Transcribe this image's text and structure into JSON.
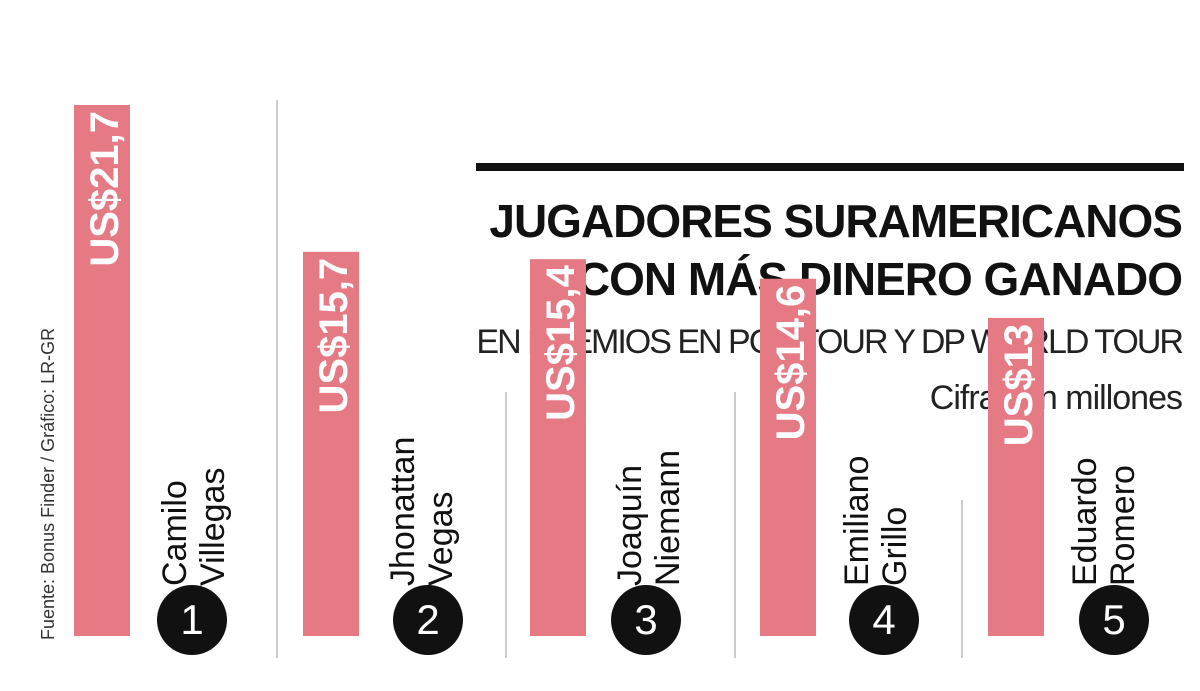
{
  "title_lines": [
    "JUGADORES SURAMERICANOS",
    "CON MÁS DINERO GANADO"
  ],
  "subtitle": "EN PREMIOS EN PGA TOUR Y DP WORLD TOUR",
  "units_note": "Cifras en millones",
  "source": "Fuente: Bonus Finder  / Gráfico: LR-GR",
  "colors": {
    "bar": "#e57a85",
    "text": "#111111",
    "divider": "#bbbbbb",
    "badge": "#111111"
  },
  "chart_data": {
    "type": "bar",
    "title": "JUGADORES SURAMERICANOS CON MÁS DINERO GANADO",
    "subtitle": "EN PREMIOS EN PGA TOUR Y DP WORLD TOUR",
    "ylabel": "Cifras en millones",
    "grid": false,
    "ylim": [
      0,
      21.7
    ],
    "players": [
      {
        "rank": "1",
        "first": "Camilo",
        "last": "Villegas",
        "label": "US$21,7"
      },
      {
        "rank": "2",
        "first": "Jhonattan",
        "last": "Vegas",
        "label": "US$15,7"
      },
      {
        "rank": "3",
        "first": "Joaquín",
        "last": "Niemann",
        "label": "US$15,4"
      },
      {
        "rank": "4",
        "first": "Emiliano",
        "last": "Grillo",
        "label": "US$14,6"
      },
      {
        "rank": "5",
        "first": "Eduardo",
        "last": "Romero",
        "label": "US$13"
      }
    ],
    "values": [
      21.7,
      15.7,
      15.4,
      14.6,
      13
    ]
  }
}
